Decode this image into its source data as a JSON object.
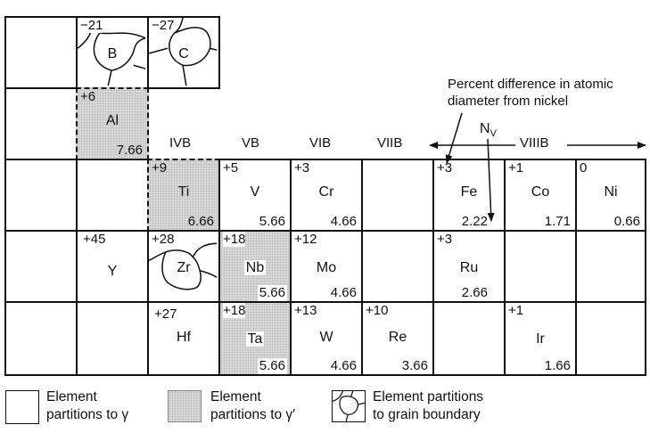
{
  "column_headers": {
    "ivb": "IVB",
    "vb": "VB",
    "vib": "VIB",
    "viib": "VIIB",
    "viiib": "VIIIB"
  },
  "annotation": {
    "percent_line1": "Percent difference in atomic",
    "percent_line2": "diameter from nickel",
    "nv_main": "N",
    "nv_sub": "V"
  },
  "elements": {
    "B": {
      "symbol": "B",
      "diff": "−21",
      "partition": "grain_boundary"
    },
    "C": {
      "symbol": "C",
      "diff": "−27",
      "partition": "grain_boundary"
    },
    "Al": {
      "symbol": "Al",
      "diff": "+6",
      "nv": "7.66",
      "partition": "gamma_prime"
    },
    "Ti": {
      "symbol": "Ti",
      "diff": "+9",
      "nv": "6.66",
      "partition": "gamma_prime"
    },
    "V": {
      "symbol": "V",
      "diff": "+5",
      "nv": "5.66",
      "partition": "gamma"
    },
    "Cr": {
      "symbol": "Cr",
      "diff": "+3",
      "nv": "4.66",
      "partition": "gamma"
    },
    "Fe": {
      "symbol": "Fe",
      "diff": "+3",
      "nv": "2.22",
      "partition": "gamma"
    },
    "Co": {
      "symbol": "Co",
      "diff": "+1",
      "nv": "1.71",
      "partition": "gamma"
    },
    "Ni": {
      "symbol": "Ni",
      "diff": "0",
      "nv": "0.66",
      "partition": "gamma"
    },
    "Y": {
      "symbol": "Y",
      "diff": "+45",
      "partition": "gamma"
    },
    "Zr": {
      "symbol": "Zr",
      "diff": "+28",
      "partition": "grain_boundary"
    },
    "Nb": {
      "symbol": "Nb",
      "diff": "+18",
      "nv": "5.66",
      "partition": "gamma_prime"
    },
    "Mo": {
      "symbol": "Mo",
      "diff": "+12",
      "nv": "4.66",
      "partition": "gamma"
    },
    "Ru": {
      "symbol": "Ru",
      "diff": "+3",
      "nv": "2.66",
      "partition": "gamma"
    },
    "Hf": {
      "symbol": "Hf",
      "diff": "+27",
      "partition": "gamma"
    },
    "Ta": {
      "symbol": "Ta",
      "diff": "+18",
      "nv": "5.66",
      "partition": "gamma_prime"
    },
    "W": {
      "symbol": "W",
      "diff": "+13",
      "nv": "4.66",
      "partition": "gamma"
    },
    "Re": {
      "symbol": "Re",
      "diff": "+10",
      "nv": "3.66",
      "partition": "gamma"
    },
    "Ir": {
      "symbol": "Ir",
      "diff": "+1",
      "nv": "1.66",
      "partition": "gamma"
    }
  },
  "legend": {
    "gamma": {
      "line1": "Element",
      "line2": "partitions to γ"
    },
    "gamma_prime": {
      "line1": "Element",
      "line2": "partitions to γ′"
    },
    "grain_boundary": {
      "line1": "Element partitions",
      "line2": "to grain boundary"
    }
  },
  "colors": {
    "line": "#111111",
    "gamma_prime_fill": "#d9d9d9",
    "gamma_fill": "#ffffff"
  }
}
